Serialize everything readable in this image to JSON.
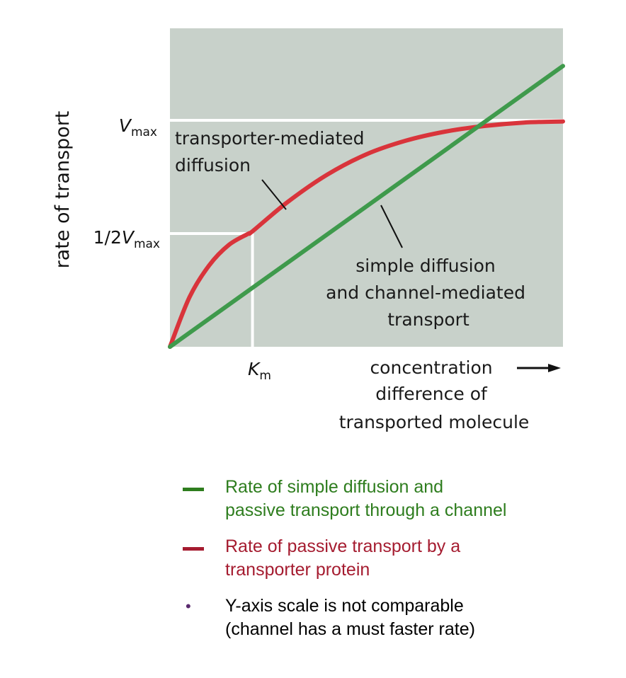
{
  "chart_data": {
    "type": "line",
    "ylabel": "rate of transport",
    "xlabel": "concentration difference of transported molecule",
    "xlabel_lines": [
      "concentration",
      "difference of",
      "transported molecule"
    ],
    "y_ticks": {
      "vmax": {
        "main": "V",
        "sub": "max"
      },
      "half_vmax": {
        "prefix": "1/2",
        "main": "V",
        "sub": "max"
      }
    },
    "x_ticks": {
      "km": {
        "main": "K",
        "sub": "m"
      }
    },
    "xlim": [
      0,
      10
    ],
    "ylim": [
      0,
      10
    ],
    "vmax": 10,
    "km": 2.1,
    "series": [
      {
        "name": "transporter-mediated diffusion",
        "color": "#d9343b",
        "x": [
          0,
          0.5,
          1,
          1.5,
          2,
          2.1,
          3,
          4,
          5,
          6,
          7,
          8,
          9,
          10
        ],
        "y": [
          0,
          2.2,
          3.6,
          4.5,
          5.0,
          5.1,
          6.4,
          7.6,
          8.5,
          9.1,
          9.5,
          9.75,
          9.9,
          9.95
        ]
      },
      {
        "name": "simple diffusion and channel-mediated transport",
        "color": "#3f9a4c",
        "x": [
          0,
          10
        ],
        "y": [
          0,
          12.4
        ]
      }
    ],
    "annotations": {
      "transporter": [
        "transporter-mediated",
        "diffusion"
      ],
      "simple": [
        "simple diffusion",
        "and channel-mediated",
        "transport"
      ]
    },
    "background": "#c8d1ca",
    "grid_color": "#ffffff"
  },
  "legend": {
    "items": [
      {
        "text": "Rate of simple diffusion and passive transport through a channel",
        "lines": [
          "Rate of simple diffusion and",
          "passive transport through a channel"
        ],
        "color": "#2e7d1e",
        "marker": "dash"
      },
      {
        "text": "Rate of passive transport by a transporter protein",
        "lines": [
          "Rate of passive transport by a",
          "transporter protein"
        ],
        "color": "#a51c30",
        "marker": "dash"
      },
      {
        "text": "Y-axis scale is not comparable (channel has a must faster rate)",
        "lines": [
          "Y-axis scale is not comparable",
          "(channel has a must faster rate)"
        ],
        "color": "#000000",
        "marker": "bullet",
        "marker_color": "#5a2a6e"
      }
    ]
  }
}
